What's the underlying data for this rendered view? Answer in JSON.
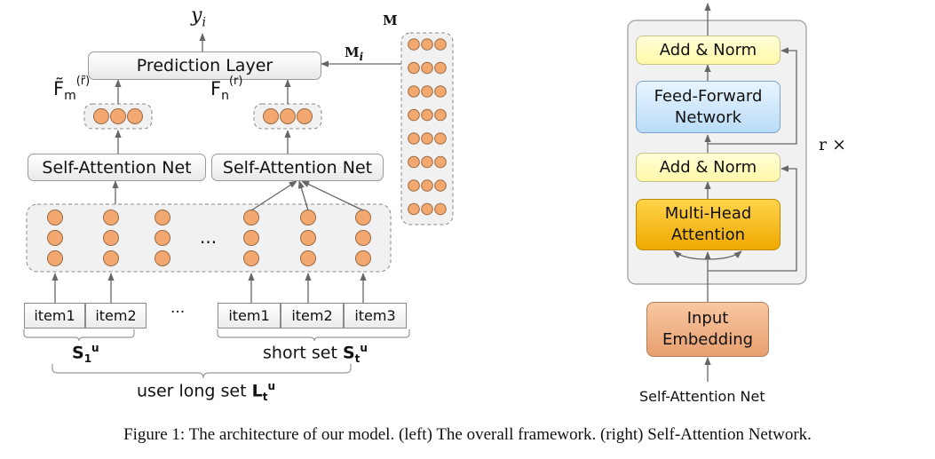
{
  "left": {
    "output_label": "y",
    "output_sub": "i",
    "prediction_layer": "Prediction Layer",
    "memory_label": "M",
    "memory_row_label": "M",
    "memory_row_sub": "i",
    "feature_long_base": "F̃",
    "feature_long_sub": "m",
    "feature_long_sup": "(r̃)",
    "feature_short_base": "F",
    "feature_short_sub": "n",
    "feature_short_sup": "(r)",
    "self_attention_left": "Self-Attention Net",
    "self_attention_right": "Self-Attention Net",
    "ellipsis_middle": "...",
    "ellipsis_items": "···",
    "items_left": [
      "item1",
      "item2"
    ],
    "items_right": [
      "item1",
      "item2",
      "item3"
    ],
    "set1_label": "S",
    "set1_sub": "1",
    "set1_sup": "u",
    "short_set_prefix": "short set ",
    "short_set_label": "S",
    "short_set_sub": "t",
    "short_set_sup": "u",
    "long_set_prefix": "user long set ",
    "long_set_label": "L",
    "long_set_sub": "t",
    "long_set_sup": "u"
  },
  "right": {
    "add_norm_top": "Add & Norm",
    "feed_forward_line1": "Feed-Forward",
    "feed_forward_line2": "Network",
    "add_norm_bottom": "Add & Norm",
    "multi_head_line1": "Multi-Head",
    "multi_head_line2": "Attention",
    "input_line1": "Input",
    "input_line2": "Embedding",
    "repeat_label": "r ×",
    "bottom_label": "Self-Attention Net"
  },
  "caption": "Figure 1: The architecture of our model. (left) The overall framework. (right) Self-Attention Network.",
  "colors": {
    "node_fill": "#f2a86f",
    "node_stroke": "#9a6a44",
    "arrow": "#666666",
    "dashed": "#888888",
    "panel_fill": "#f1f1f1"
  }
}
